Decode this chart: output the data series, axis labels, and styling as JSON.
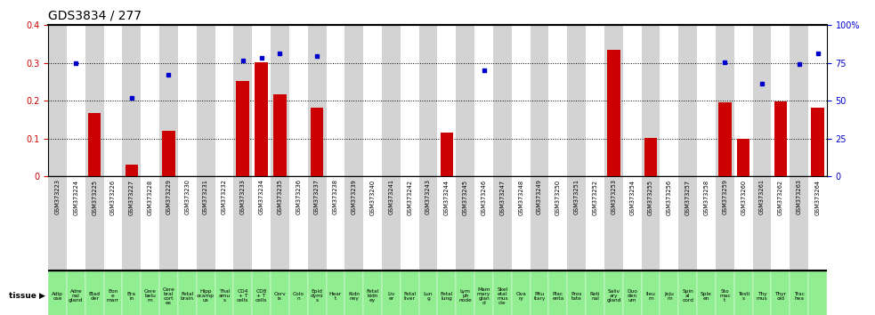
{
  "title": "GDS3834 / 277",
  "gsm_ids": [
    "GSM373223",
    "GSM373224",
    "GSM373225",
    "GSM373226",
    "GSM373227",
    "GSM373228",
    "GSM373229",
    "GSM373230",
    "GSM373231",
    "GSM373232",
    "GSM373233",
    "GSM373234",
    "GSM373235",
    "GSM373236",
    "GSM373237",
    "GSM373238",
    "GSM373239",
    "GSM373240",
    "GSM373241",
    "GSM373242",
    "GSM373243",
    "GSM373244",
    "GSM373245",
    "GSM373246",
    "GSM373247",
    "GSM373248",
    "GSM373249",
    "GSM373250",
    "GSM373251",
    "GSM373252",
    "GSM373253",
    "GSM373254",
    "GSM373255",
    "GSM373256",
    "GSM373257",
    "GSM373258",
    "GSM373259",
    "GSM373260",
    "GSM373261",
    "GSM373262",
    "GSM373263",
    "GSM373264"
  ],
  "tissues_line1": [
    "Adip",
    "Adre",
    "Blad",
    "Bon",
    "Bra",
    "Cere",
    "Cere",
    "Fetal",
    "Hipp",
    "Thal",
    "CD4",
    "CD8",
    "Cerv",
    "Colo",
    "Epid",
    "Hear",
    "Kidn",
    "Fetal",
    "Liv",
    "Fetal",
    "Lun",
    "Fetal",
    "Lym",
    "Mam",
    "Skel",
    "Ova",
    "Pitu",
    "Plac",
    "Pros",
    "Reti",
    "Saliv",
    "Duo",
    "Ileu",
    "Jeju",
    "Spin",
    "Sple",
    "Sto",
    "Testi",
    "Thy",
    "Thyr",
    "Trac",
    "hea"
  ],
  "tissues_line2": [
    "ose",
    "nal",
    "der",
    "e",
    "in",
    "belu",
    "bral",
    "brain",
    "ocamp",
    "amu",
    "+ T",
    "+ T",
    "ix",
    "n",
    "dymi",
    "t",
    "ney",
    "kidn",
    "er",
    "liver",
    "g",
    "lung",
    "ph",
    "mary",
    "etal",
    "ry",
    "itary",
    "enta",
    "tate",
    "nal",
    "ary",
    "den",
    "m",
    "m",
    "al",
    "en",
    "mac",
    "s",
    "mus",
    "oid",
    "hea",
    ""
  ],
  "tissues_line3": [
    "",
    "gland",
    "",
    "marr",
    "",
    "m",
    "cort",
    "",
    "us",
    "s",
    "cells",
    "cells",
    "",
    "",
    "s",
    "",
    "",
    "ey",
    "",
    "",
    "",
    "",
    "node",
    "glan",
    "mus",
    "",
    "",
    "",
    "",
    "",
    "gland",
    "um",
    "",
    "",
    "cord",
    "",
    "t",
    "",
    "",
    "",
    "",
    ""
  ],
  "tissues_line4": [
    "",
    "",
    "",
    "",
    "",
    "",
    "ex",
    "",
    "",
    "",
    "",
    "",
    "",
    "",
    "",
    "",
    "",
    "",
    "",
    "",
    "",
    "",
    "",
    "d",
    "cle",
    "",
    "",
    "",
    "",
    "",
    "",
    "",
    "",
    "",
    "",
    "",
    "",
    "",
    "",
    "",
    "",
    ""
  ],
  "tissue_labels": [
    "Adip\nose",
    "Adre\nnal\ngland",
    "Blad\nder",
    "Bon\ne\nmarr",
    "Bra\nin",
    "Cere\nbelu\nm",
    "Cere\nbral\ncort\nex",
    "Fetal\nbrain",
    "Hipp\nocamp\nus",
    "Thal\namu\ns",
    "CD4\n+ T\ncells",
    "CD8\n+ T\ncells",
    "Cerv\nix",
    "Colo\nn",
    "Epid\ndymi\ns",
    "Hear\nt",
    "Kidn\nney",
    "Fetal\nkidn\ney",
    "Liv\ner",
    "Fetal\nliver",
    "Lun\ng",
    "Fetal\nlung",
    "Lym\nph\nnode",
    "Mam\nmary\nglan\nd",
    "Skel\netal\nmus\ncle",
    "Ova\nry",
    "Pitu\nitary",
    "Plac\nenta",
    "Pros\ntate",
    "Reti\nnal",
    "Saliv\nary\ngland",
    "Duo\nden\num",
    "Ileu\nm",
    "Jeju\nm",
    "Spin\nal\ncord",
    "Sple\nen",
    "Sto\nmac\nt",
    "Testi\ns",
    "Thy\nmus",
    "Thyr\noid",
    "Trac\nhea",
    ""
  ],
  "log10_ratio": [
    0,
    0,
    0.168,
    0,
    0.03,
    0,
    0.12,
    0,
    0,
    0,
    0.252,
    0.303,
    0.216,
    0,
    0.182,
    0,
    0,
    0,
    0,
    0,
    0,
    0.115,
    0,
    0,
    0,
    0,
    0,
    0,
    0,
    0,
    0.336,
    0,
    0.102,
    0,
    0,
    0,
    0.195,
    0.1,
    0,
    0.198,
    0,
    0.182
  ],
  "percentile_rank_pct": [
    0,
    75,
    0,
    0,
    52,
    0,
    67.5,
    0,
    0,
    0,
    76.8,
    78.3,
    81.3,
    0,
    79.5,
    0,
    0,
    0,
    0,
    0,
    0,
    0,
    0,
    70,
    0,
    0,
    0,
    0,
    0,
    0,
    0,
    0,
    0,
    0,
    0,
    0,
    75.5,
    0,
    61.3,
    0,
    74.5,
    81.3
  ],
  "bar_color": "#cc0000",
  "dot_color": "#0000cc",
  "ylim_left": [
    0,
    0.4
  ],
  "ylim_right": [
    0,
    100
  ],
  "yticks_left": [
    0,
    0.1,
    0.2,
    0.3,
    0.4
  ],
  "ytick_labels_left": [
    "0",
    "0.1",
    "0.2",
    "0.3",
    "0.4"
  ],
  "yticks_right": [
    0,
    25,
    50,
    75,
    100
  ],
  "ytick_labels_right": [
    "0",
    "25",
    "50",
    "75",
    "100%"
  ],
  "bg_color_gray": "#d3d3d3",
  "bg_color_green": "#90ee90",
  "tick_fontsize": 7,
  "tissue_fontsize": 4.2
}
